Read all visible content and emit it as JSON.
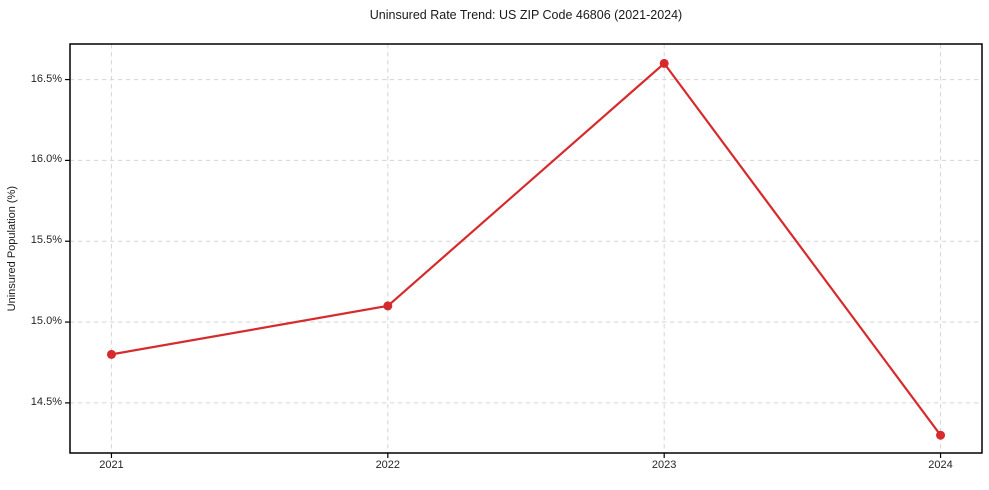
{
  "chart_data": {
    "type": "line",
    "title": "Uninsured Rate Trend: US ZIP Code 46806 (2021-2024)",
    "xlabel": "",
    "ylabel": "Uninsured Population (%)",
    "x": [
      2021,
      2022,
      2023,
      2024
    ],
    "values": [
      14.8,
      15.1,
      16.6,
      14.3
    ],
    "xticks": [
      2021,
      2022,
      2023,
      2024
    ],
    "xtick_labels": [
      "2021",
      "2022",
      "2023",
      "2024"
    ],
    "yticks": [
      14.5,
      15.0,
      15.5,
      16.0,
      16.5
    ],
    "ytick_labels": [
      "14.5%",
      "15.0%",
      "15.5%",
      "16.0%",
      "16.5%"
    ],
    "xlim": [
      2020.85,
      2024.15
    ],
    "ylim": [
      14.19,
      16.72
    ],
    "grid": true,
    "grid_style": "dashed",
    "legend": false,
    "marker": "circle",
    "colors": {
      "line": "#d62b2d",
      "marker": "#d62b2d",
      "grid": "#d6d6d6",
      "spine": "#000000",
      "title_text": "#1a1a1a",
      "tick_text": "#262626",
      "background": "#ffffff"
    }
  }
}
